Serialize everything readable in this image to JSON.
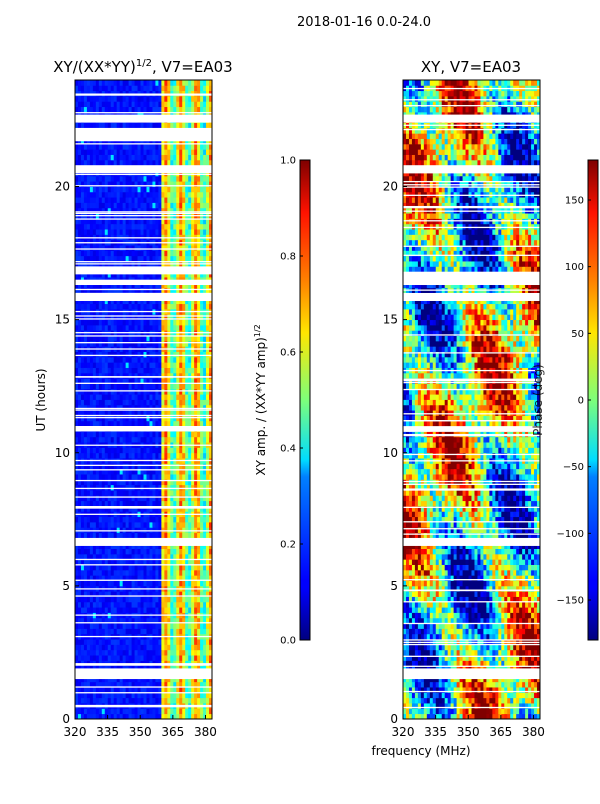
{
  "suptitle": "2018-01-16 0.0-24.0",
  "shared_xlabel": "frequency (MHz)",
  "chart_data": [
    {
      "type": "heatmap",
      "title": "XY/(XX*YY)^1/2, V7=EA03",
      "title_main": "XY/(XX*YY)",
      "title_exp": "1/2",
      "title_tail": ", V7=EA03",
      "xlabel": "frequency (MHz)",
      "ylabel": "UT (hours)",
      "xlim": [
        320,
        383
      ],
      "ylim": [
        0,
        24
      ],
      "xticks": [
        320,
        335,
        350,
        365,
        380
      ],
      "yticks": [
        0,
        5,
        10,
        15,
        20
      ],
      "white_gaps_ut": [
        [
          1.5,
          1.9
        ],
        [
          2.0,
          2.1
        ],
        [
          6.5,
          6.8
        ],
        [
          7.9,
          8.0
        ],
        [
          10.8,
          11.0
        ],
        [
          15.7,
          16.0
        ],
        [
          16.3,
          16.5
        ],
        [
          16.7,
          17.0
        ],
        [
          20.5,
          20.8
        ],
        [
          21.7,
          22.2
        ],
        [
          22.4,
          22.7
        ]
      ],
      "high_band_mhz": [
        360,
        383
      ],
      "colorbar": {
        "label_main": "XY amp. / (XX*YY amp)",
        "label_exp": "1/2",
        "range": [
          0.0,
          1.0
        ],
        "ticks": [
          "0.0",
          "0.2",
          "0.4",
          "0.6",
          "0.8",
          "1.0"
        ]
      }
    },
    {
      "type": "heatmap",
      "title": "XY, V7=EA03",
      "xlabel": "frequency (MHz)",
      "ylabel": "",
      "xlim": [
        320,
        383
      ],
      "ylim": [
        0,
        24
      ],
      "xticks": [
        320,
        335,
        350,
        365,
        380
      ],
      "yticks": [
        0,
        5,
        10,
        15,
        20
      ],
      "white_gaps_ut": [
        [
          1.5,
          1.9
        ],
        [
          6.5,
          6.8
        ],
        [
          10.8,
          11.0
        ],
        [
          15.7,
          16.0
        ],
        [
          16.3,
          16.8
        ],
        [
          20.5,
          20.8
        ],
        [
          22.4,
          22.7
        ]
      ],
      "colorbar": {
        "label": "Phase (deg)",
        "range": [
          -180,
          180
        ],
        "ticks": [
          "−150",
          "−100",
          "−50",
          "0",
          "50",
          "100",
          "150"
        ],
        "tick_values": [
          -150,
          -100,
          -50,
          0,
          50,
          100,
          150
        ]
      }
    }
  ]
}
